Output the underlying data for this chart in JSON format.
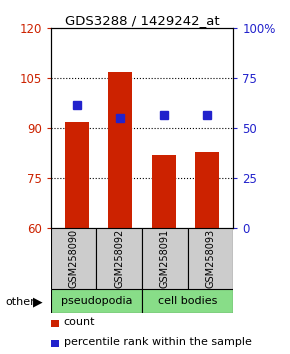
{
  "title": "GDS3288 / 1429242_at",
  "categories": [
    "GSM258090",
    "GSM258092",
    "GSM258091",
    "GSM258093"
  ],
  "bar_values": [
    92,
    107,
    82,
    83
  ],
  "blue_values": [
    97,
    93,
    94,
    94
  ],
  "bar_bottom": 60,
  "ylim": [
    60,
    120
  ],
  "y_ticks": [
    60,
    75,
    90,
    105,
    120
  ],
  "y2_ticks": [
    0,
    25,
    50,
    75,
    100
  ],
  "y2_labels": [
    "0",
    "25",
    "50",
    "75",
    "100%"
  ],
  "bar_color": "#cc2200",
  "blue_color": "#2222cc",
  "group1_label": "pseudopodia",
  "group2_label": "cell bodies",
  "group_color": "#88dd88",
  "other_label": "other",
  "legend_count": "count",
  "legend_pct": "percentile rank within the sample",
  "tick_color_left": "#cc2200",
  "tick_color_right": "#2222cc",
  "bar_width": 0.55,
  "blue_marker_size": 6,
  "label_box_color": "#cccccc"
}
